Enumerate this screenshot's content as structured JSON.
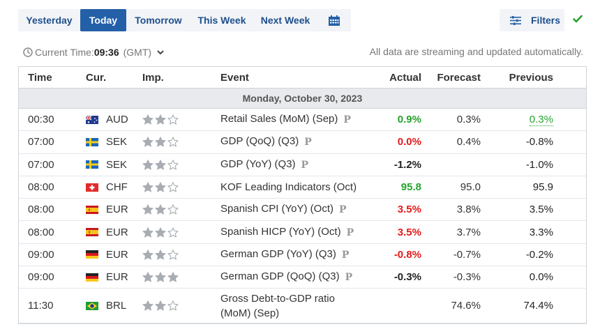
{
  "tabs": [
    "Yesterday",
    "Today",
    "Tomorrow",
    "This Week",
    "Next Week"
  ],
  "active_tab": "Today",
  "filters_label": "Filters",
  "current_time": {
    "label": "Current Time:",
    "value": "09:36",
    "timezone": "(GMT)"
  },
  "streaming_note": "All data are streaming and updated automatically.",
  "columns": {
    "time": "Time",
    "currency": "Cur.",
    "importance": "Imp.",
    "event": "Event",
    "actual": "Actual",
    "forecast": "Forecast",
    "previous": "Previous"
  },
  "date_heading": "Monday, October 30, 2023",
  "colors": {
    "accent": "#2460a7",
    "positive": "#26a32d",
    "negative": "#e01b1b"
  },
  "rows": [
    {
      "time": "00:30",
      "flag": "AU",
      "currency": "AUD",
      "stars": 2,
      "event": "Retail Sales (MoM) (Sep)",
      "prelim": true,
      "actual": "0.9%",
      "actual_color": "green",
      "forecast": "0.3%",
      "previous": "0.3%",
      "previous_color": "green"
    },
    {
      "time": "07:00",
      "flag": "SE",
      "currency": "SEK",
      "stars": 2,
      "event": "GDP (QoQ) (Q3)",
      "prelim": true,
      "actual": "0.0%",
      "actual_color": "red",
      "forecast": "0.4%",
      "previous": "-0.8%",
      "previous_color": "black"
    },
    {
      "time": "07:00",
      "flag": "SE",
      "currency": "SEK",
      "stars": 2,
      "event": "GDP (YoY) (Q3)",
      "prelim": true,
      "actual": "-1.2%",
      "actual_color": "black",
      "forecast": "",
      "previous": "-1.0%",
      "previous_color": "black"
    },
    {
      "time": "08:00",
      "flag": "CH",
      "currency": "CHF",
      "stars": 2,
      "event": "KOF Leading Indicators (Oct)",
      "prelim": false,
      "actual": "95.8",
      "actual_color": "green",
      "forecast": "95.0",
      "previous": "95.9",
      "previous_color": "black"
    },
    {
      "time": "08:00",
      "flag": "ES",
      "currency": "EUR",
      "stars": 2,
      "event": "Spanish CPI (YoY) (Oct)",
      "prelim": true,
      "actual": "3.5%",
      "actual_color": "red",
      "forecast": "3.8%",
      "previous": "3.5%",
      "previous_color": "black"
    },
    {
      "time": "08:00",
      "flag": "ES",
      "currency": "EUR",
      "stars": 2,
      "event": "Spanish HICP (YoY) (Oct)",
      "prelim": true,
      "actual": "3.5%",
      "actual_color": "red",
      "forecast": "3.7%",
      "previous": "3.3%",
      "previous_color": "black"
    },
    {
      "time": "09:00",
      "flag": "DE",
      "currency": "EUR",
      "stars": 2,
      "event": "German GDP (YoY) (Q3)",
      "prelim": true,
      "actual": "-0.8%",
      "actual_color": "red",
      "forecast": "-0.7%",
      "previous": "-0.2%",
      "previous_color": "black"
    },
    {
      "time": "09:00",
      "flag": "DE",
      "currency": "EUR",
      "stars": 3,
      "event": "German GDP (QoQ) (Q3)",
      "prelim": true,
      "actual": "-0.3%",
      "actual_color": "black",
      "forecast": "-0.3%",
      "previous": "0.0%",
      "previous_color": "black"
    },
    {
      "time": "11:30",
      "flag": "BR",
      "currency": "BRL",
      "stars": 2,
      "event": "Gross Debt-to-GDP ratio (MoM) (Sep)",
      "prelim": false,
      "actual": "",
      "actual_color": "black",
      "forecast": "74.6%",
      "previous": "74.4%",
      "previous_color": "black"
    }
  ],
  "prelim_glyph": "P"
}
